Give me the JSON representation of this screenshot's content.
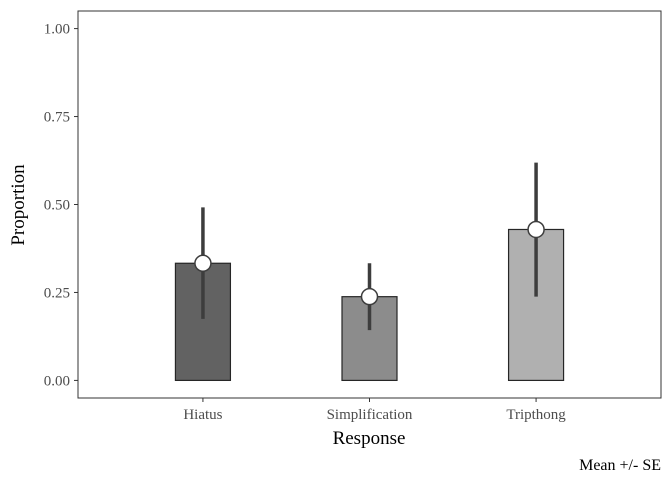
{
  "chart_data": {
    "type": "bar",
    "title": "",
    "xlabel": "Response",
    "ylabel": "Proportion",
    "caption": "Mean +/- SE",
    "categories": [
      "Hiatus",
      "Simplification",
      "Tripthong"
    ],
    "values": [
      0.333,
      0.238,
      0.429
    ],
    "error_low": [
      0.175,
      0.143,
      0.238
    ],
    "error_high": [
      0.492,
      0.333,
      0.619
    ],
    "ylim": [
      -0.05,
      1.05
    ],
    "yticks": [
      0.0,
      0.25,
      0.5,
      0.75,
      1.0
    ],
    "ytick_labels": [
      "0.00",
      "0.25",
      "0.50",
      "0.75",
      "1.00"
    ],
    "grid": false,
    "legend": "none",
    "colors": {
      "bars": [
        "#626262",
        "#8c8c8c",
        "#b0b0b0"
      ],
      "bar_outline": "#262626",
      "errorbar": "#3d3d3d",
      "point_fill": "#ffffff",
      "panel_border": "#333333"
    }
  }
}
